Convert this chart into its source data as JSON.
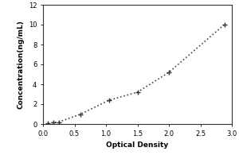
{
  "x_data": [
    0.08,
    0.16,
    0.25,
    0.6,
    1.05,
    1.5,
    2.0,
    2.88
  ],
  "y_data": [
    0.05,
    0.15,
    0.2,
    1.0,
    2.4,
    3.2,
    5.2,
    10.0
  ],
  "xlabel": "Optical Density",
  "ylabel": "Concentration(ng/mL)",
  "xlim": [
    0,
    3
  ],
  "ylim": [
    0,
    12
  ],
  "xticks": [
    0,
    0.5,
    1,
    1.5,
    2,
    2.5,
    3
  ],
  "yticks": [
    0,
    2,
    4,
    6,
    8,
    10,
    12
  ],
  "line_color": "#444444",
  "marker": "+",
  "marker_size": 5,
  "line_style": ":",
  "line_width": 1.2,
  "marker_color": "#333333",
  "background_color": "#ffffff",
  "label_fontsize": 6.5,
  "tick_fontsize": 6
}
